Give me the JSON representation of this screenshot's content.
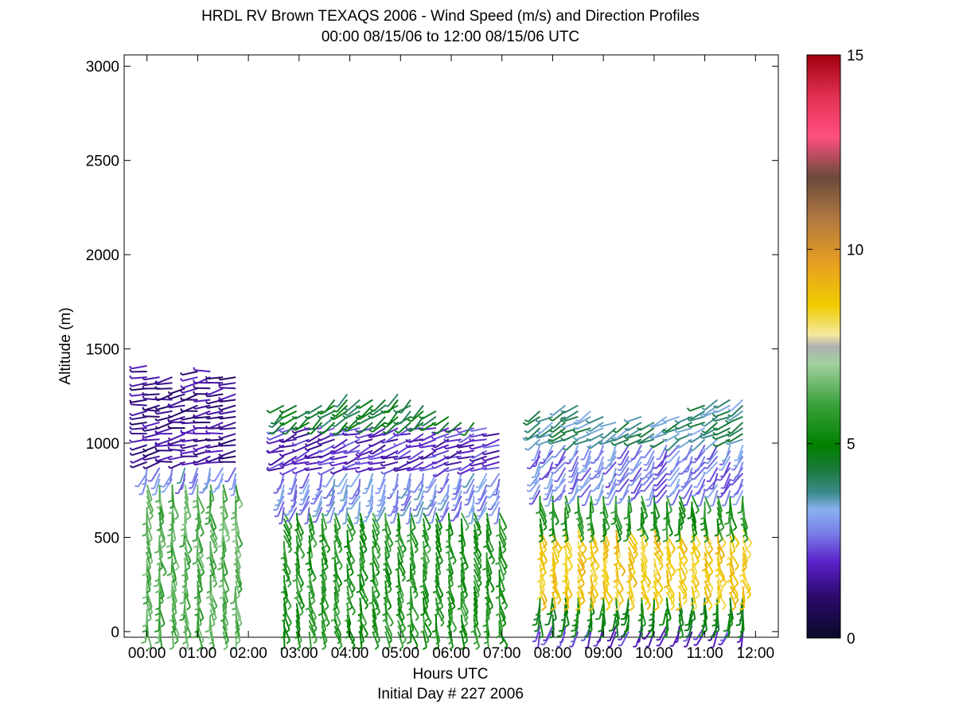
{
  "chart_data": {
    "type": "wind-barb profile",
    "title": "HRDL RV Brown TEXAQS 2006 - Wind Speed (m/s) and Direction Profiles",
    "subtitle": "00:00 08/15/06 to 12:00 08/15/06  UTC",
    "xlabel": "Hours UTC",
    "xlabel2": "Initial Day # 227  2006",
    "ylabel": "Altitude (m)",
    "x_ticks": [
      "00:00",
      "01:00",
      "02:00",
      "03:00",
      "04:00",
      "05:00",
      "06:00",
      "07:00",
      "08:00",
      "09:00",
      "10:00",
      "11:00",
      "12:00"
    ],
    "x_range_hours": [
      -0.45,
      12.45
    ],
    "y_ticks": [
      "0",
      "500",
      "1000",
      "1500",
      "2000",
      "2500",
      "3000"
    ],
    "y_range": [
      -30,
      3060
    ],
    "colorbar": {
      "ticks": [
        "0",
        "5",
        "10",
        "15"
      ],
      "range": [
        0,
        15
      ],
      "unit": "m/s"
    },
    "series": [
      {
        "segment": "00:00-01:55",
        "profile_times_hours": [
          0.0,
          0.25,
          0.5,
          0.75,
          1.0,
          1.25,
          1.5,
          1.75
        ],
        "top_altitude_m": [
          1430,
          1370,
          1360,
          1300,
          1380,
          1390,
          1370,
          1360
        ],
        "layers": [
          {
            "alt_range_m": [
              0,
              800
            ],
            "speed_ms": 6.2,
            "direction_deg": 170
          },
          {
            "alt_range_m": [
              800,
              900
            ],
            "speed_ms": 3.0,
            "direction_deg": 200
          },
          {
            "alt_range_m": [
              900,
              1450
            ],
            "speed_ms": 1.4,
            "direction_deg": 260
          }
        ]
      },
      {
        "segment": "02:40-07:10",
        "profile_times_hours": [
          2.7,
          2.95,
          3.2,
          3.45,
          3.7,
          3.95,
          4.2,
          4.45,
          4.7,
          4.95,
          5.2,
          5.45,
          5.7,
          5.95,
          6.2,
          6.45,
          6.7,
          6.95
        ],
        "top_altitude_m": [
          1220,
          1200,
          1180,
          1200,
          1230,
          1270,
          1250,
          1230,
          1240,
          1260,
          1230,
          1200,
          1170,
          1150,
          1120,
          1120,
          1080,
          1060
        ],
        "layers": [
          {
            "alt_range_m": [
              0,
              650
            ],
            "speed_ms": 5.6,
            "direction_deg": 165
          },
          {
            "alt_range_m": [
              650,
              850
            ],
            "speed_ms": 3.0,
            "direction_deg": 200
          },
          {
            "alt_range_m": [
              850,
              1100
            ],
            "speed_ms": 2.0,
            "direction_deg": 250
          },
          {
            "alt_range_m": [
              1100,
              1270
            ],
            "speed_ms": 4.4,
            "direction_deg": 230
          }
        ]
      },
      {
        "segment": "07:40-11:50",
        "profile_times_hours": [
          7.75,
          8.0,
          8.25,
          8.5,
          8.75,
          9.0,
          9.25,
          9.5,
          9.75,
          10.0,
          10.25,
          10.5,
          10.75,
          11.0,
          11.25,
          11.5,
          11.75
        ],
        "top_altitude_m": [
          1180,
          1160,
          1200,
          1210,
          1180,
          1150,
          1120,
          1120,
          1140,
          1130,
          1150,
          1140,
          1150,
          1200,
          1250,
          1240,
          1230
        ],
        "layers": [
          {
            "alt_range_m": [
              0,
              60
            ],
            "speed_ms": 2.0,
            "direction_deg": 200
          },
          {
            "alt_range_m": [
              60,
              200
            ],
            "speed_ms": 5.0,
            "direction_deg": 180
          },
          {
            "alt_range_m": [
              200,
              560
            ],
            "speed_ms": 8.6,
            "direction_deg": 160
          },
          {
            "alt_range_m": [
              560,
              750
            ],
            "speed_ms": 5.5,
            "direction_deg": 170
          },
          {
            "alt_range_m": [
              750,
              1000
            ],
            "speed_ms": 2.8,
            "direction_deg": 210
          },
          {
            "alt_range_m": [
              1000,
              1250
            ],
            "speed_ms": 3.8,
            "direction_deg": 240
          }
        ]
      }
    ]
  }
}
